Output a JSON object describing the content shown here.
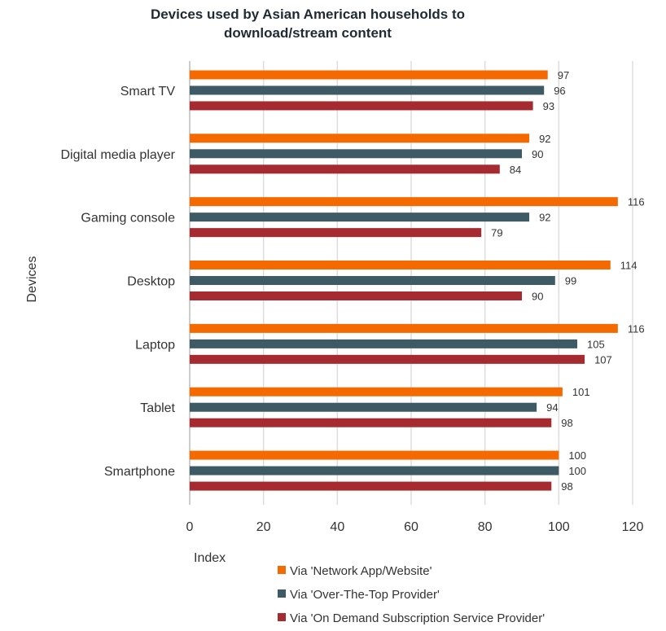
{
  "chart_data": {
    "type": "bar",
    "orientation": "horizontal",
    "title": "Devices used by Asian American households to download/stream content",
    "title_lines": [
      "Devices used by Asian American households to",
      "download/stream content"
    ],
    "xlabel": "Index",
    "ylabel": "Devices",
    "xlim": [
      0,
      120
    ],
    "xticks": [
      0,
      20,
      40,
      60,
      80,
      100,
      120
    ],
    "grid": "vertical",
    "legend_placement": "bottom",
    "categories": [
      "Smart TV",
      "Digital media player",
      "Gaming console",
      "Desktop",
      "Laptop",
      "Tablet",
      "Smartphone"
    ],
    "series": [
      {
        "name": "Via 'Network App/Website'",
        "color": "#F56A00",
        "values": [
          97,
          92,
          116,
          114,
          116,
          101,
          100
        ]
      },
      {
        "name": "Via 'Over-The-Top Provider'",
        "color": "#3E5A64",
        "values": [
          96,
          90,
          92,
          99,
          105,
          94,
          100
        ]
      },
      {
        "name": "Via 'On Demand Subscription Service Provider'",
        "color": "#A62B30",
        "values": [
          93,
          84,
          79,
          90,
          107,
          98,
          98
        ]
      }
    ]
  }
}
